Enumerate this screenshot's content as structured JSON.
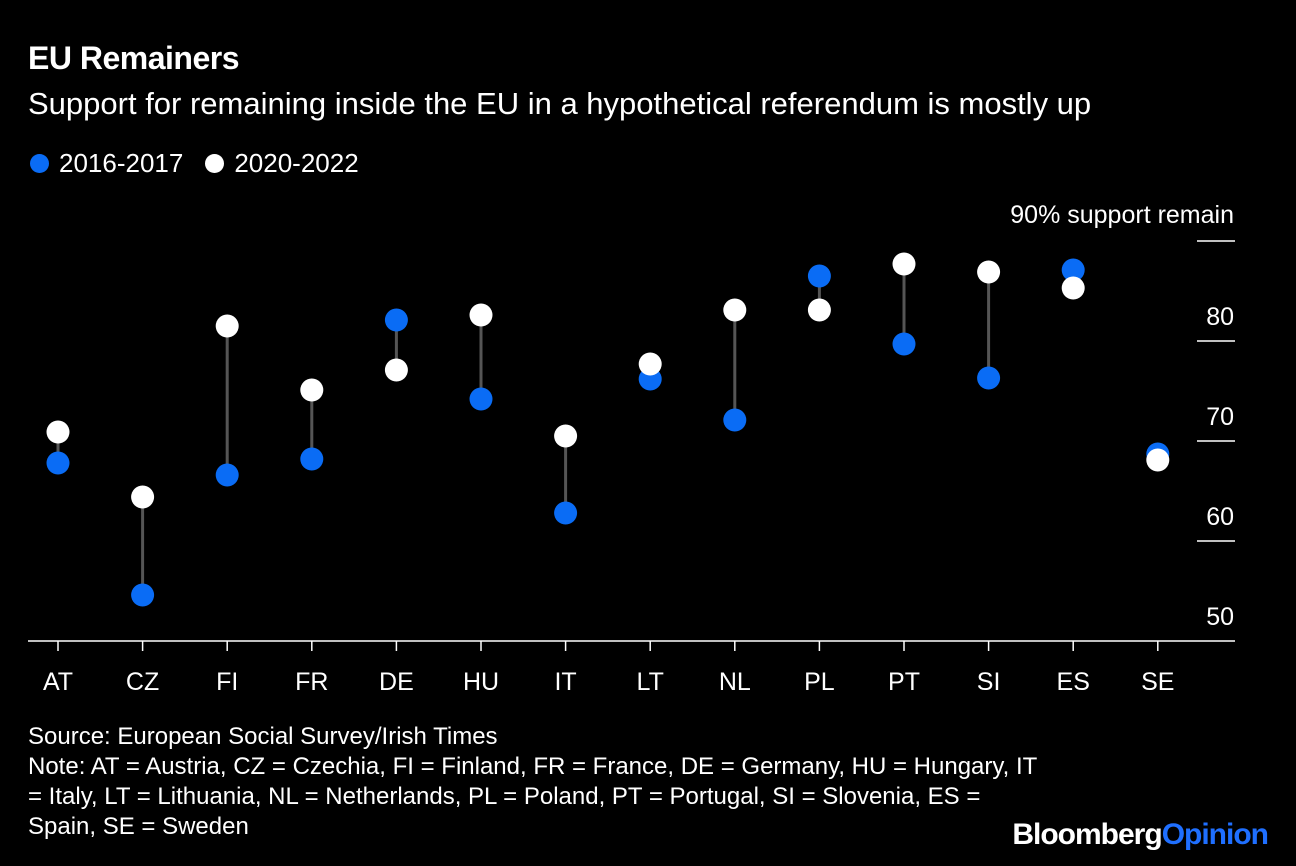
{
  "colors": {
    "series_2016": "#0a6cf5",
    "series_2020": "#ffffff",
    "connector": "#555555",
    "axis": "#ffffff",
    "brand_accent": "#1f6fff"
  },
  "chart_data": {
    "type": "dot-range",
    "title": "EU Remainers",
    "subtitle": "Support for remaining inside the EU in a hypothetical referendum is mostly up",
    "legend": [
      "2016-2017",
      "2020-2022"
    ],
    "y_axis_title": "90% support remain",
    "ylim": [
      50,
      90
    ],
    "yticks": [
      50,
      60,
      70,
      80,
      90
    ],
    "ytick_labels": [
      "50",
      "60",
      "70",
      "80",
      ""
    ],
    "categories": [
      "AT",
      "CZ",
      "FI",
      "FR",
      "DE",
      "HU",
      "IT",
      "LT",
      "NL",
      "PL",
      "PT",
      "SI",
      "ES",
      "SE"
    ],
    "series": [
      {
        "name": "2016-2017",
        "values": [
          67.8,
          54.6,
          66.6,
          68.2,
          82.1,
          74.2,
          62.8,
          76.2,
          72.1,
          86.5,
          79.7,
          76.3,
          87.1,
          68.7
        ]
      },
      {
        "name": "2020-2022",
        "values": [
          70.9,
          64.4,
          81.5,
          75.1,
          77.1,
          82.6,
          70.5,
          77.7,
          83.1,
          83.1,
          87.7,
          86.9,
          85.3,
          68.1
        ]
      }
    ]
  },
  "footer": {
    "source": "Source: European Social Survey/Irish Times",
    "note": "Note: AT = Austria, CZ = Czechia, FI = Finland, FR = France, DE = Germany, HU = Hungary, IT = Italy, LT = Lithuania, NL = Netherlands, PL = Poland, PT = Portugal, SI = Slovenia, ES = Spain, SE = Sweden"
  },
  "brand": {
    "part1": "Bloomberg",
    "part2": "Opinion"
  }
}
